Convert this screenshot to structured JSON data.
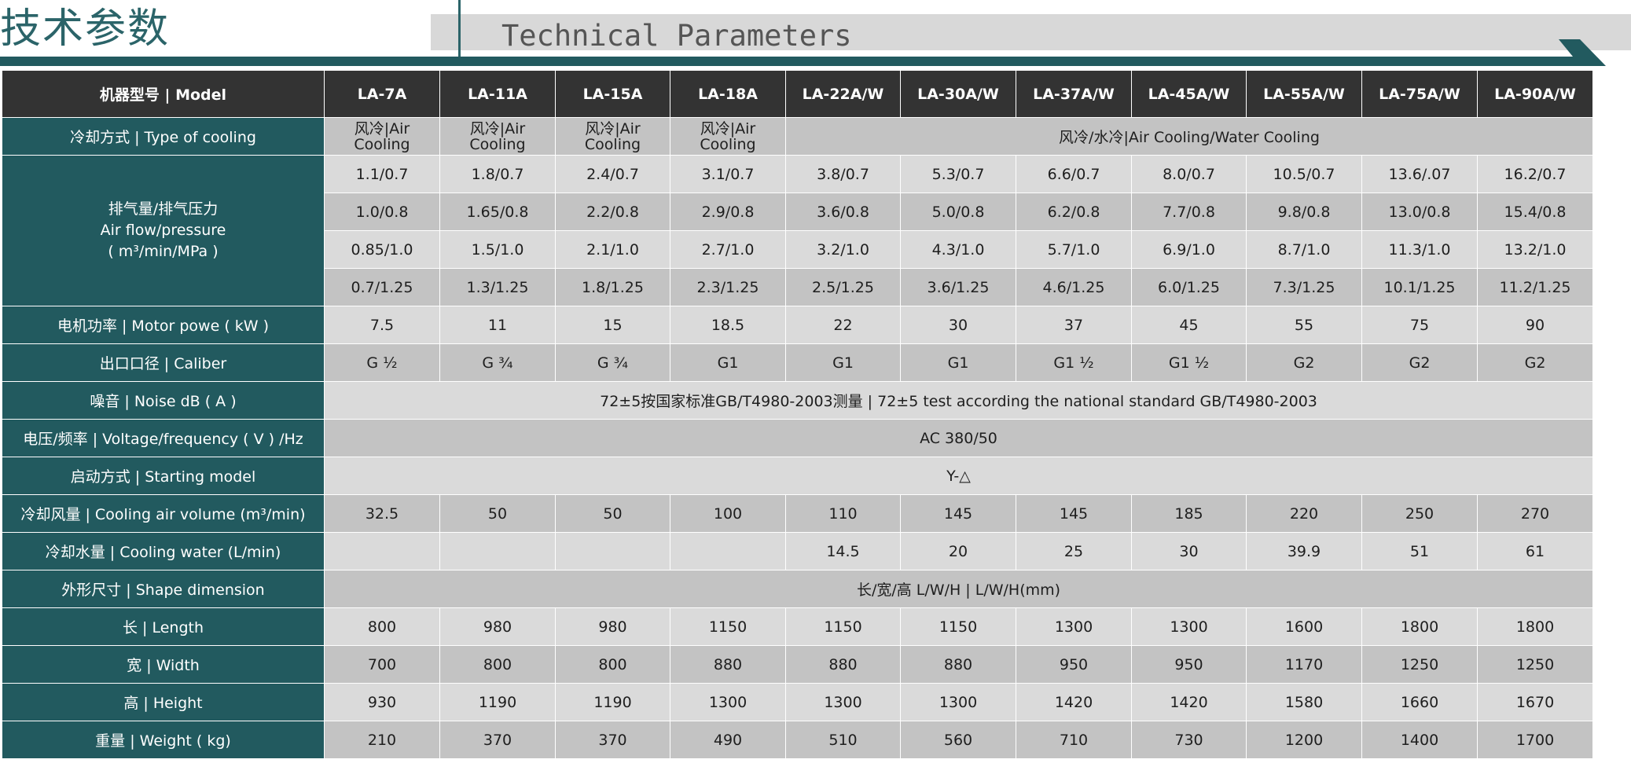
{
  "header": {
    "title_cn": "技术参数",
    "title_en": "Technical Parameters"
  },
  "colors": {
    "accent": "#225a5f",
    "header_row": "#333333",
    "cell_light": "#dadada",
    "cell_dark": "#c3c3c3"
  },
  "table": {
    "model_header": "机器型号 | Model",
    "models": [
      "LA-7A",
      "LA-11A",
      "LA-15A",
      "LA-18A",
      "LA-22A/W",
      "LA-30A/W",
      "LA-37A/W",
      "LA-45A/W",
      "LA-55A/W",
      "LA-75A/W",
      "LA-90A/W"
    ],
    "cooling": {
      "label": "冷却方式 | Type of cooling",
      "air_cn": "风冷|Air",
      "air_en": "Cooling",
      "mixed": "风冷/水冷|Air Cooling/Water Cooling"
    },
    "airflow": {
      "label_cn": "排气量/排气压力",
      "label_en": "Air flow/pressure",
      "label_unit": "( m³/min/MPa )",
      "rows": [
        [
          "1.1/0.7",
          "1.8/0.7",
          "2.4/0.7",
          "3.1/0.7",
          "3.8/0.7",
          "5.3/0.7",
          "6.6/0.7",
          "8.0/0.7",
          "10.5/0.7",
          "13.6/.07",
          "16.2/0.7"
        ],
        [
          "1.0/0.8",
          "1.65/0.8",
          "2.2/0.8",
          "2.9/0.8",
          "3.6/0.8",
          "5.0/0.8",
          "6.2/0.8",
          "7.7/0.8",
          "9.8/0.8",
          "13.0/0.8",
          "15.4/0.8"
        ],
        [
          "0.85/1.0",
          "1.5/1.0",
          "2.1/1.0",
          "2.7/1.0",
          "3.2/1.0",
          "4.3/1.0",
          "5.7/1.0",
          "6.9/1.0",
          "8.7/1.0",
          "11.3/1.0",
          "13.2/1.0"
        ],
        [
          "0.7/1.25",
          "1.3/1.25",
          "1.8/1.25",
          "2.3/1.25",
          "2.5/1.25",
          "3.6/1.25",
          "4.6/1.25",
          "6.0/1.25",
          "7.3/1.25",
          "10.1/1.25",
          "11.2/1.25"
        ]
      ]
    },
    "motor": {
      "label": "电机功率 | Motor powe ( kW )",
      "values": [
        "7.5",
        "11",
        "15",
        "18.5",
        "22",
        "30",
        "37",
        "45",
        "55",
        "75",
        "90"
      ]
    },
    "caliber": {
      "label": "出口口径 | Caliber",
      "values": [
        "G ½",
        "G ¾",
        "G ¾",
        "G1",
        "G1",
        "G1",
        "G1 ½",
        "G1 ½",
        "G2",
        "G2",
        "G2"
      ]
    },
    "noise": {
      "label": "噪音 | Noise  dB ( A )",
      "value": "72±5按国家标准GB/T4980-2003测量 |  72±5 test according the national standard GB/T4980-2003"
    },
    "voltage": {
      "label": "电压/频率 | Voltage/frequency ( V ) /Hz",
      "value": "AC 380/50"
    },
    "starting": {
      "label": "启动方式 | Starting model",
      "value": "Y-△"
    },
    "cooling_air": {
      "label": "冷却风量 | Cooling air volume (m³/min)",
      "values": [
        "32.5",
        "50",
        "50",
        "100",
        "110",
        "145",
        "145",
        "185",
        "220",
        "250",
        "270"
      ]
    },
    "cooling_water": {
      "label": "冷却水量 | Cooling water (L/min)",
      "values": [
        "14.5",
        "20",
        "25",
        "30",
        "39.9",
        "51",
        "61"
      ]
    },
    "shape": {
      "label": "外形尺寸 | Shape dimension",
      "value": "长/宽/高 L/W/H |  L/W/H(mm)"
    },
    "length": {
      "label": "长 | Length",
      "values": [
        "800",
        "980",
        "980",
        "1150",
        "1150",
        "1150",
        "1300",
        "1300",
        "1600",
        "1800",
        "1800"
      ]
    },
    "width": {
      "label": "宽 | Width",
      "values": [
        "700",
        "800",
        "800",
        "880",
        "880",
        "880",
        "950",
        "950",
        "1170",
        "1250",
        "1250"
      ]
    },
    "height": {
      "label": "高 | Height",
      "values": [
        "930",
        "1190",
        "1190",
        "1300",
        "1300",
        "1300",
        "1420",
        "1420",
        "1580",
        "1660",
        "1670"
      ]
    },
    "weight": {
      "label": "重量 | Weight ( kg)",
      "values": [
        "210",
        "370",
        "370",
        "490",
        "510",
        "560",
        "710",
        "730",
        "1200",
        "1400",
        "1700"
      ]
    }
  }
}
